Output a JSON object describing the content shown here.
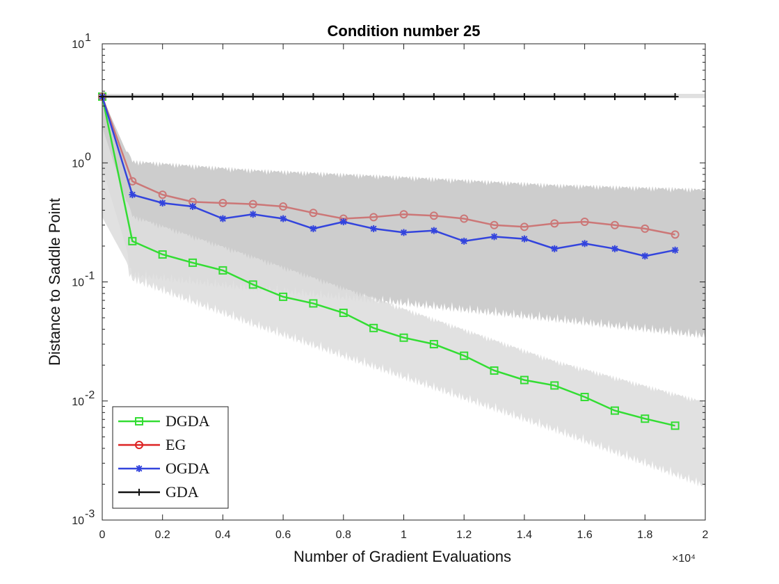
{
  "chart_data": {
    "type": "line",
    "title": "Condition number 25",
    "xlabel": "Number of Gradient Evaluations",
    "ylabel": "Distance to Saddle Point",
    "yscale": "log",
    "xlim": [
      0,
      20000
    ],
    "ylim": [
      0.001,
      10
    ],
    "x_tick_labels": [
      "0",
      "0.2",
      "0.4",
      "0.6",
      "0.8",
      "1",
      "1.2",
      "1.4",
      "1.6",
      "1.8",
      "2"
    ],
    "x_multiplier": "×10⁴",
    "y_ticks": [
      {
        "value": 0.001,
        "base": "10",
        "exp": "-3"
      },
      {
        "value": 0.01,
        "base": "10",
        "exp": "-2"
      },
      {
        "value": 0.1,
        "base": "10",
        "exp": "-1"
      },
      {
        "value": 1,
        "base": "10",
        "exp": "0"
      },
      {
        "value": 10,
        "base": "10",
        "exp": "1"
      }
    ],
    "x": [
      0,
      1000,
      2000,
      3000,
      4000,
      5000,
      6000,
      7000,
      8000,
      9000,
      10000,
      11000,
      12000,
      13000,
      14000,
      15000,
      16000,
      17000,
      18000,
      19000
    ],
    "series": [
      {
        "name": "DGDA",
        "color": "#33dd33",
        "marker": "square",
        "values": [
          3.6,
          0.22,
          0.17,
          0.145,
          0.125,
          0.095,
          0.075,
          0.066,
          0.055,
          0.041,
          0.034,
          0.03,
          0.024,
          0.018,
          0.015,
          0.0135,
          0.0108,
          0.0083,
          0.0071,
          0.0062
        ]
      },
      {
        "name": "EG",
        "color": "#cc7777",
        "legend_color": "#dd2222",
        "marker": "circle",
        "values": [
          3.6,
          0.7,
          0.54,
          0.47,
          0.46,
          0.45,
          0.43,
          0.38,
          0.34,
          0.35,
          0.37,
          0.36,
          0.34,
          0.3,
          0.29,
          0.31,
          0.32,
          0.3,
          0.28,
          0.25
        ]
      },
      {
        "name": "OGDA",
        "color": "#3344dd",
        "marker": "star",
        "values": [
          3.6,
          0.54,
          0.46,
          0.43,
          0.34,
          0.37,
          0.34,
          0.28,
          0.32,
          0.28,
          0.26,
          0.27,
          0.22,
          0.24,
          0.23,
          0.19,
          0.21,
          0.19,
          0.165,
          0.185
        ]
      },
      {
        "name": "GDA",
        "color": "#111111",
        "marker": "plus",
        "values": [
          3.6,
          3.6,
          3.6,
          3.6,
          3.6,
          3.6,
          3.6,
          3.6,
          3.6,
          3.6,
          3.6,
          3.6,
          3.6,
          3.6,
          3.6,
          3.6,
          3.6,
          3.6,
          3.6,
          3.6
        ]
      }
    ],
    "shaded_bands": [
      {
        "label": "GDA band",
        "x": [
          0,
          20000
        ],
        "lower": [
          3.5,
          3.5
        ],
        "upper": [
          3.8,
          3.8
        ],
        "color": "#dddddd"
      },
      {
        "label": "EG/OGDA band",
        "x": [
          0,
          1000,
          5000,
          10000,
          15000,
          20000
        ],
        "lower": [
          0.9,
          0.13,
          0.1,
          0.075,
          0.055,
          0.04
        ],
        "upper": [
          3.6,
          0.95,
          0.8,
          0.7,
          0.6,
          0.55
        ],
        "color": "#c8c8c8"
      },
      {
        "label": "DGDA band",
        "x": [
          0,
          1000,
          5000,
          10000,
          15000,
          20000
        ],
        "lower": [
          0.35,
          0.12,
          0.05,
          0.018,
          0.0065,
          0.0022
        ],
        "upper": [
          2.0,
          0.33,
          0.15,
          0.055,
          0.02,
          0.009
        ],
        "color": "#dedede"
      }
    ],
    "legend": {
      "position": "bottom-left",
      "entries": [
        "DGDA",
        "EG",
        "OGDA",
        "GDA"
      ]
    },
    "grid": false
  }
}
